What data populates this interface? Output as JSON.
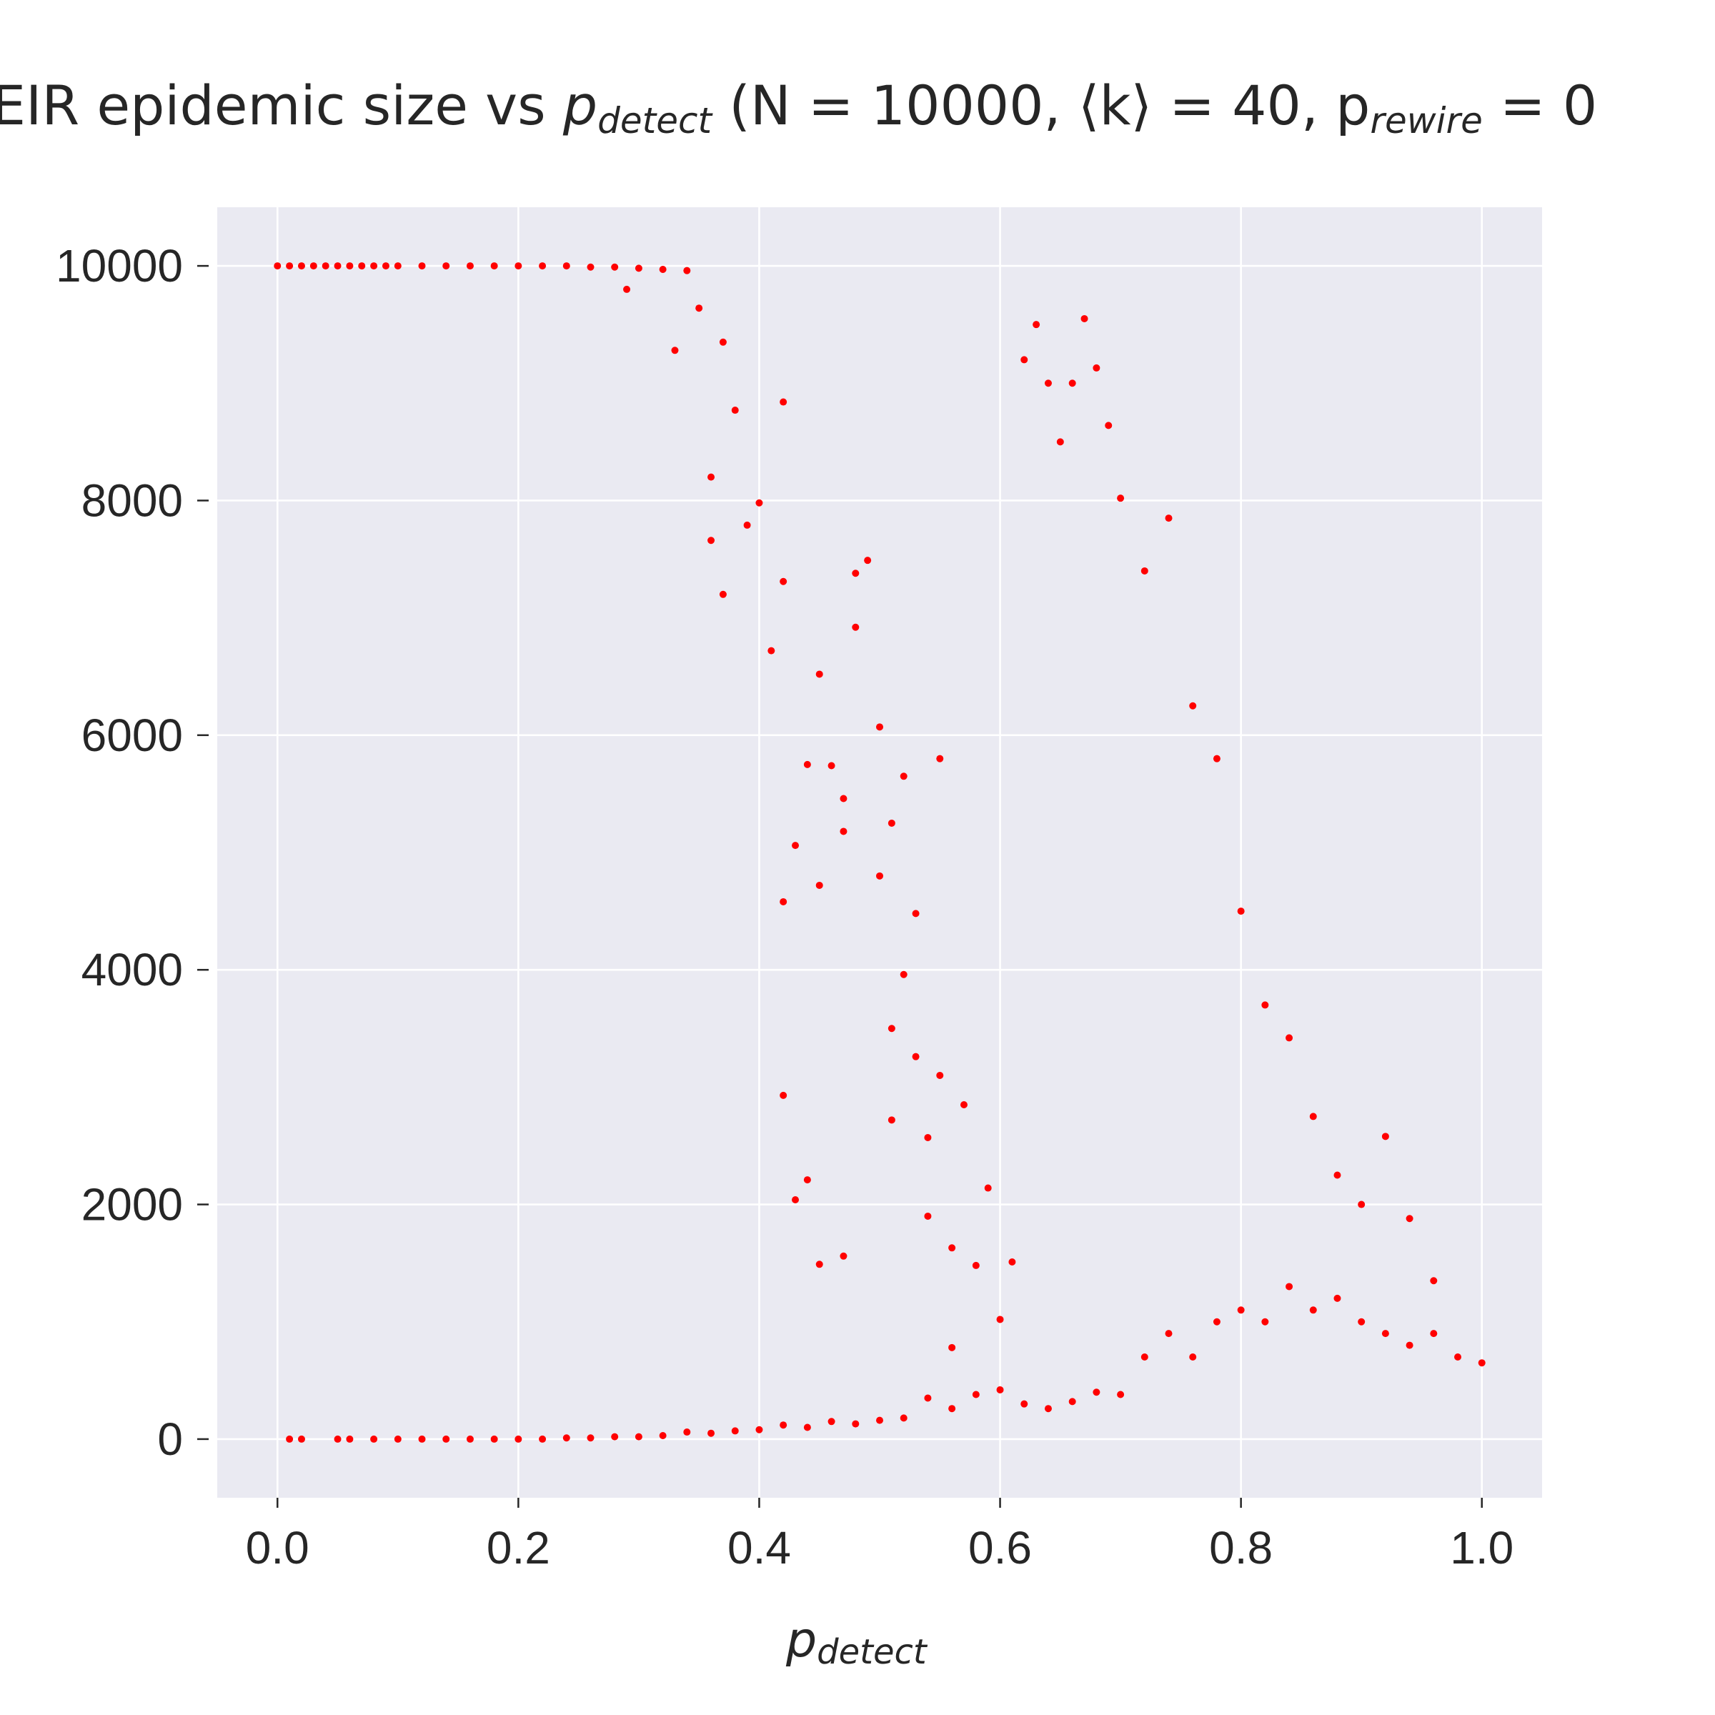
{
  "chart_data": {
    "type": "scatter",
    "title": {
      "prefix": "EIR epidemic size vs ",
      "var_main": "p",
      "var_sub": "detect",
      "params": " (N = 10000, ⟨k⟩ = 40, p",
      "params_sub": "rewire",
      "params_end": " = 0"
    },
    "xlabel": {
      "main": "p",
      "sub": "detect"
    },
    "ylabel": "",
    "xlim": [
      -0.05,
      1.05
    ],
    "ylim": [
      -500,
      10500
    ],
    "xticks": [
      0.0,
      0.2,
      0.4,
      0.6,
      0.8,
      1.0
    ],
    "xtick_labels": [
      "0.0",
      "0.2",
      "0.4",
      "0.6",
      "0.8",
      "1.0"
    ],
    "yticks": [
      0,
      2000,
      4000,
      6000,
      8000,
      10000
    ],
    "ytick_labels": [
      "0",
      "2000",
      "4000",
      "6000",
      "8000",
      "10000"
    ],
    "grid": true,
    "background": "#eaeaf2",
    "point_color": "#ff0000",
    "series": [
      {
        "points": [
          [
            0.0,
            10000
          ],
          [
            0.01,
            10000
          ],
          [
            0.02,
            10000
          ],
          [
            0.03,
            10000
          ],
          [
            0.04,
            10000
          ],
          [
            0.05,
            10000
          ],
          [
            0.06,
            10000
          ],
          [
            0.07,
            10000
          ],
          [
            0.08,
            10000
          ],
          [
            0.09,
            10000
          ],
          [
            0.1,
            10000
          ],
          [
            0.12,
            10000
          ],
          [
            0.14,
            10000
          ],
          [
            0.16,
            10000
          ],
          [
            0.18,
            10000
          ],
          [
            0.2,
            10000
          ],
          [
            0.22,
            10000
          ],
          [
            0.24,
            10000
          ],
          [
            0.26,
            9990
          ],
          [
            0.28,
            9990
          ],
          [
            0.29,
            9800
          ],
          [
            0.3,
            9980
          ],
          [
            0.32,
            9970
          ],
          [
            0.33,
            9280
          ],
          [
            0.34,
            9960
          ],
          [
            0.35,
            9640
          ],
          [
            0.36,
            8200
          ],
          [
            0.36,
            7660
          ],
          [
            0.37,
            9350
          ],
          [
            0.37,
            7200
          ],
          [
            0.38,
            8770
          ],
          [
            0.39,
            7790
          ],
          [
            0.4,
            7980
          ],
          [
            0.41,
            6720
          ],
          [
            0.42,
            8840
          ],
          [
            0.42,
            7310
          ],
          [
            0.42,
            4580
          ],
          [
            0.42,
            2930
          ],
          [
            0.43,
            5060
          ],
          [
            0.43,
            2040
          ],
          [
            0.44,
            5750
          ],
          [
            0.44,
            2210
          ],
          [
            0.45,
            6520
          ],
          [
            0.45,
            4720
          ],
          [
            0.45,
            1490
          ],
          [
            0.46,
            5740
          ],
          [
            0.47,
            5460
          ],
          [
            0.47,
            5180
          ],
          [
            0.47,
            1560
          ],
          [
            0.48,
            7380
          ],
          [
            0.48,
            6920
          ],
          [
            0.49,
            7490
          ],
          [
            0.5,
            6070
          ],
          [
            0.5,
            4800
          ],
          [
            0.51,
            5250
          ],
          [
            0.51,
            3500
          ],
          [
            0.51,
            2720
          ],
          [
            0.52,
            5650
          ],
          [
            0.52,
            3960
          ],
          [
            0.53,
            4480
          ],
          [
            0.53,
            3260
          ],
          [
            0.54,
            2570
          ],
          [
            0.54,
            1900
          ],
          [
            0.55,
            5800
          ],
          [
            0.55,
            3100
          ],
          [
            0.56,
            1630
          ],
          [
            0.56,
            780
          ],
          [
            0.57,
            2850
          ],
          [
            0.58,
            1480
          ],
          [
            0.59,
            2140
          ],
          [
            0.6,
            1020
          ],
          [
            0.61,
            1510
          ],
          [
            0.01,
            0
          ],
          [
            0.02,
            0
          ],
          [
            0.05,
            0
          ],
          [
            0.06,
            0
          ],
          [
            0.08,
            0
          ],
          [
            0.1,
            0
          ],
          [
            0.12,
            0
          ],
          [
            0.14,
            0
          ],
          [
            0.16,
            0
          ],
          [
            0.18,
            0
          ],
          [
            0.2,
            0
          ],
          [
            0.22,
            0
          ],
          [
            0.24,
            10
          ],
          [
            0.26,
            10
          ],
          [
            0.28,
            20
          ],
          [
            0.3,
            20
          ],
          [
            0.32,
            30
          ],
          [
            0.34,
            60
          ],
          [
            0.36,
            50
          ],
          [
            0.38,
            70
          ],
          [
            0.4,
            80
          ],
          [
            0.42,
            120
          ],
          [
            0.44,
            100
          ],
          [
            0.46,
            150
          ],
          [
            0.48,
            130
          ],
          [
            0.5,
            160
          ],
          [
            0.52,
            180
          ],
          [
            0.54,
            350
          ],
          [
            0.56,
            260
          ],
          [
            0.58,
            380
          ],
          [
            0.6,
            420
          ],
          [
            0.62,
            300
          ],
          [
            0.64,
            260
          ],
          [
            0.66,
            320
          ],
          [
            0.68,
            400
          ],
          [
            0.7,
            380
          ],
          [
            0.72,
            700
          ],
          [
            0.74,
            900
          ],
          [
            0.76,
            700
          ],
          [
            0.78,
            1000
          ],
          [
            0.8,
            1100
          ],
          [
            0.82,
            1000
          ],
          [
            0.84,
            1300
          ],
          [
            0.86,
            1100
          ],
          [
            0.88,
            1200
          ],
          [
            0.9,
            1000
          ],
          [
            0.92,
            900
          ],
          [
            0.94,
            800
          ],
          [
            0.96,
            900
          ],
          [
            0.98,
            700
          ],
          [
            1.0,
            650
          ],
          [
            0.62,
            9200
          ],
          [
            0.63,
            9500
          ],
          [
            0.64,
            9000
          ],
          [
            0.65,
            8500
          ],
          [
            0.66,
            9000
          ],
          [
            0.67,
            9550
          ],
          [
            0.68,
            9130
          ],
          [
            0.69,
            8640
          ],
          [
            0.7,
            8020
          ],
          [
            0.72,
            7400
          ],
          [
            0.74,
            7850
          ],
          [
            0.76,
            6250
          ],
          [
            0.78,
            5800
          ],
          [
            0.8,
            4500
          ],
          [
            0.82,
            3700
          ],
          [
            0.84,
            3420
          ],
          [
            0.86,
            2750
          ],
          [
            0.88,
            2250
          ],
          [
            0.9,
            2000
          ],
          [
            0.92,
            2580
          ],
          [
            0.94,
            1880
          ],
          [
            0.96,
            1350
          ]
        ]
      }
    ]
  }
}
